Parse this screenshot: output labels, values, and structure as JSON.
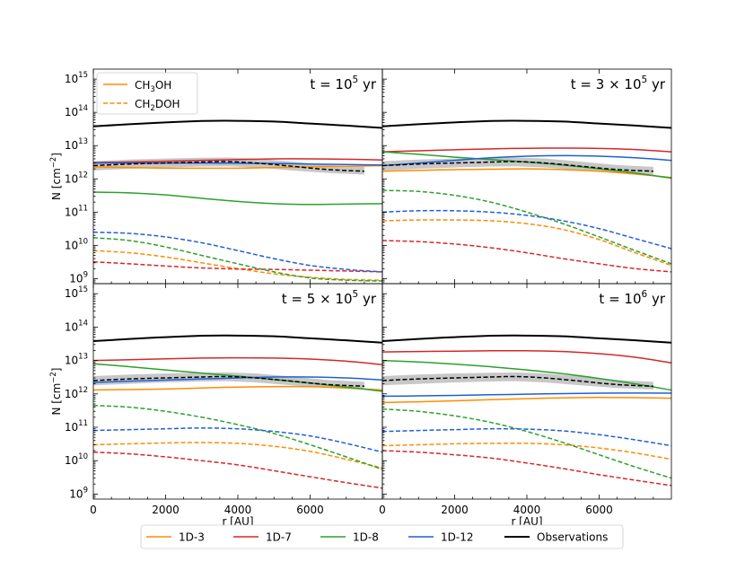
{
  "chart_data": {
    "type": "line",
    "shared": {
      "xlabel": "r [AU]",
      "ylabel": "N [cm",
      "ylabel_sup": "−2",
      "ylabel_end": "]",
      "xlim": [
        0,
        8000
      ],
      "ylim_log10": [
        8.85,
        15.3
      ],
      "yscale": "log",
      "x_ticks": [
        0,
        2000,
        4000,
        6000
      ],
      "x_tick_labels": [
        "0",
        "2000",
        "4000",
        "6000"
      ],
      "y_tick_exponents": [
        9,
        10,
        11,
        12,
        13,
        14,
        15
      ],
      "y_tick_base": "10",
      "x": [
        0,
        1000,
        2000,
        3000,
        4000,
        5000,
        6000,
        7000,
        8000
      ]
    },
    "style_legend": [
      {
        "label_main": "CH",
        "label_sub": "3",
        "label_end": "OH",
        "dash": "solid"
      },
      {
        "label_main": "CH",
        "label_sub": "2",
        "label_end": "DOH",
        "dash": "dashed"
      }
    ],
    "legend": [
      {
        "name": "1D-3",
        "color": "#ff8c00"
      },
      {
        "name": "1D-7",
        "color": "#d62728"
      },
      {
        "name": "1D-8",
        "color": "#2ca02c"
      },
      {
        "name": "1D-12",
        "color": "#1f5fd6"
      },
      {
        "name": "Observations",
        "color": "#000000"
      }
    ],
    "panels": [
      {
        "title_pre": "t = 10",
        "title_sup": "5",
        "title_post": " yr",
        "series": [
          {
            "model": "1D-3",
            "species": "CH3OH",
            "values": [
              2300000000000.0,
              2200000000000.0,
              2100000000000.0,
              2100000000000.0,
              2100000000000.0,
              2200000000000.0,
              2300000000000.0,
              2400000000000.0,
              2500000000000.0
            ]
          },
          {
            "model": "1D-7",
            "species": "CH3OH",
            "values": [
              3100000000000.0,
              3200000000000.0,
              3400000000000.0,
              3600000000000.0,
              3800000000000.0,
              4000000000000.0,
              4000000000000.0,
              3900000000000.0,
              3700000000000.0
            ]
          },
          {
            "model": "1D-8",
            "species": "CH3OH",
            "values": [
              400000000000.0,
              380000000000.0,
              330000000000.0,
              260000000000.0,
              210000000000.0,
              180000000000.0,
              170000000000.0,
              175000000000.0,
              180000000000.0
            ]
          },
          {
            "model": "1D-12",
            "species": "CH3OH",
            "values": [
              3000000000000.0,
              3000000000000.0,
              3000000000000.0,
              3000000000000.0,
              2950000000000.0,
              2900000000000.0,
              2800000000000.0,
              2700000000000.0,
              2600000000000.0
            ]
          },
          {
            "model": "1D-3",
            "species": "CH2DOH",
            "values": [
              7000000000.0,
              6000000000.0,
              4500000000.0,
              3000000000.0,
              2000000000.0,
              1400000000.0,
              1100000000.0,
              950000000.0,
              900000000.0
            ]
          },
          {
            "model": "1D-7",
            "species": "CH2DOH",
            "values": [
              3200000000.0,
              2800000000.0,
              2400000000.0,
              2100000000.0,
              1950000000.0,
              1900000000.0,
              1800000000.0,
              1700000000.0,
              1600000000.0
            ]
          },
          {
            "model": "1D-8",
            "species": "CH2DOH",
            "values": [
              17000000000.0,
              14000000000.0,
              9000000000.0,
              5000000000.0,
              2800000000.0,
              1600000000.0,
              1050000000.0,
              900000000.0,
              850000000.0
            ]
          },
          {
            "model": "1D-12",
            "species": "CH2DOH",
            "values": [
              25000000000.0,
              23000000000.0,
              18000000000.0,
              12000000000.0,
              7000000000.0,
              4000000000.0,
              2500000000.0,
              1900000000.0,
              1600000000.0
            ]
          }
        ]
      },
      {
        "title_pre": "t = 3 × 10",
        "title_sup": "5",
        "title_post": " yr",
        "series": [
          {
            "model": "1D-3",
            "species": "CH3OH",
            "values": [
              1700000000000.0,
              1800000000000.0,
              1900000000000.0,
              1950000000000.0,
              2000000000000.0,
              1900000000000.0,
              1700000000000.0,
              1400000000000.0,
              1100000000000.0
            ]
          },
          {
            "model": "1D-7",
            "species": "CH3OH",
            "values": [
              6500000000000.0,
              7000000000000.0,
              7500000000000.0,
              8000000000000.0,
              8300000000000.0,
              8400000000000.0,
              8200000000000.0,
              7600000000000.0,
              6500000000000.0
            ]
          },
          {
            "model": "1D-8",
            "species": "CH3OH",
            "values": [
              6500000000000.0,
              5500000000000.0,
              4500000000000.0,
              3800000000000.0,
              3200000000000.0,
              2600000000000.0,
              2000000000000.0,
              1500000000000.0,
              1050000000000.0
            ]
          },
          {
            "model": "1D-12",
            "species": "CH3OH",
            "values": [
              2500000000000.0,
              3000000000000.0,
              3600000000000.0,
              4300000000000.0,
              4800000000000.0,
              5000000000000.0,
              4800000000000.0,
              4300000000000.0,
              3600000000000.0
            ]
          },
          {
            "model": "1D-3",
            "species": "CH2DOH",
            "values": [
              55000000000.0,
              58000000000.0,
              58000000000.0,
              55000000000.0,
              45000000000.0,
              30000000000.0,
              15000000000.0,
              6000000000.0,
              2500000000.0
            ]
          },
          {
            "model": "1D-7",
            "species": "CH2DOH",
            "values": [
              14000000000.0,
              13000000000.0,
              11000000000.0,
              8500000000.0,
              6000000000.0,
              4000000000.0,
              2800000000.0,
              2000000000.0,
              1600000000.0
            ]
          },
          {
            "model": "1D-8",
            "species": "CH2DOH",
            "values": [
              450000000000.0,
              420000000000.0,
              320000000000.0,
              200000000000.0,
              100000000000.0,
              45000000000.0,
              18000000000.0,
              7000000000.0,
              2800000000.0
            ]
          },
          {
            "model": "1D-12",
            "species": "CH2DOH",
            "values": [
              100000000000.0,
              110000000000.0,
              110000000000.0,
              100000000000.0,
              80000000000.0,
              55000000000.0,
              32000000000.0,
              16000000000.0,
              8000000000.0
            ]
          }
        ]
      },
      {
        "title_pre": "t = 5 × 10",
        "title_sup": "5",
        "title_post": " yr",
        "series": [
          {
            "model": "1D-3",
            "species": "CH3OH",
            "values": [
              1300000000000.0,
              1350000000000.0,
              1400000000000.0,
              1500000000000.0,
              1600000000000.0,
              1650000000000.0,
              1650000000000.0,
              1500000000000.0,
              1300000000000.0
            ]
          },
          {
            "model": "1D-7",
            "species": "CH3OH",
            "values": [
              10000000000000.0,
              10500000000000.0,
              11200000000000.0,
              11800000000000.0,
              12000000000000.0,
              11800000000000.0,
              11000000000000.0,
              9500000000000.0,
              7500000000000.0
            ]
          },
          {
            "model": "1D-8",
            "species": "CH3OH",
            "values": [
              8000000000000.0,
              6500000000000.0,
              5200000000000.0,
              4200000000000.0,
              3400000000000.0,
              2700000000000.0,
              2100000000000.0,
              1600000000000.0,
              1200000000000.0
            ]
          },
          {
            "model": "1D-12",
            "species": "CH3OH",
            "values": [
              2200000000000.0,
              2400000000000.0,
              2600000000000.0,
              2800000000000.0,
              3000000000000.0,
              3200000000000.0,
              3200000000000.0,
              3000000000000.0,
              2600000000000.0
            ]
          },
          {
            "model": "1D-3",
            "species": "CH2DOH",
            "values": [
              30000000000.0,
              32000000000.0,
              34000000000.0,
              35000000000.0,
              33000000000.0,
              27000000000.0,
              19000000000.0,
              11000000000.0,
              6000000000.0
            ]
          },
          {
            "model": "1D-7",
            "species": "CH2DOH",
            "values": [
              18000000000.0,
              16000000000.0,
              13000000000.0,
              10000000000.0,
              7500000000.0,
              5000000000.0,
              3300000000.0,
              2200000000.0,
              1500000000.0
            ]
          },
          {
            "model": "1D-8",
            "species": "CH2DOH",
            "values": [
              450000000000.0,
              400000000000.0,
              300000000000.0,
              200000000000.0,
              120000000000.0,
              65000000000.0,
              30000000000.0,
              13000000000.0,
              5500000000.0
            ]
          },
          {
            "model": "1D-12",
            "species": "CH2DOH",
            "values": [
              80000000000.0,
              85000000000.0,
              90000000000.0,
              95000000000.0,
              90000000000.0,
              75000000000.0,
              55000000000.0,
              33000000000.0,
              18000000000.0
            ]
          }
        ]
      },
      {
        "title_pre": "t = 10",
        "title_sup": "6",
        "title_post": " yr",
        "series": [
          {
            "model": "1D-3",
            "species": "CH3OH",
            "values": [
              550000000000.0,
              580000000000.0,
              620000000000.0,
              670000000000.0,
              720000000000.0,
              760000000000.0,
              780000000000.0,
              770000000000.0,
              740000000000.0
            ]
          },
          {
            "model": "1D-7",
            "species": "CH3OH",
            "values": [
              18000000000000.0,
              18500000000000.0,
              19000000000000.0,
              19500000000000.0,
              19500000000000.0,
              18500000000000.0,
              16000000000000.0,
              12500000000000.0,
              8500000000000.0
            ]
          },
          {
            "model": "1D-8",
            "species": "CH3OH",
            "values": [
              10000000000000.0,
              9000000000000.0,
              7800000000000.0,
              6500000000000.0,
              5200000000000.0,
              4000000000000.0,
              2900000000000.0,
              2000000000000.0,
              1300000000000.0
            ]
          },
          {
            "model": "1D-12",
            "species": "CH3OH",
            "values": [
              850000000000.0,
              870000000000.0,
              900000000000.0,
              940000000000.0,
              980000000000.0,
              1020000000000.0,
              1050000000000.0,
              1060000000000.0,
              1050000000000.0
            ]
          },
          {
            "model": "1D-3",
            "species": "CH2DOH",
            "values": [
              28000000000.0,
              30000000000.0,
              32000000000.0,
              33000000000.0,
              33000000000.0,
              30000000000.0,
              24000000000.0,
              17000000000.0,
              11000000000.0
            ]
          },
          {
            "model": "1D-7",
            "species": "CH2DOH",
            "values": [
              20000000000.0,
              18000000000.0,
              15000000000.0,
              12000000000.0,
              8500000000.0,
              5800000000.0,
              3800000000.0,
              2600000000.0,
              1800000000.0
            ]
          },
          {
            "model": "1D-8",
            "species": "CH2DOH",
            "values": [
              350000000000.0,
              300000000000.0,
              220000000000.0,
              140000000000.0,
              75000000000.0,
              35000000000.0,
              15000000000.0,
              6500000000.0,
              3000000000.0
            ]
          },
          {
            "model": "1D-12",
            "species": "CH2DOH",
            "values": [
              75000000000.0,
              80000000000.0,
              85000000000.0,
              90000000000.0,
              88000000000.0,
              78000000000.0,
              60000000000.0,
              42000000000.0,
              28000000000.0
            ]
          }
        ]
      }
    ],
    "observations": {
      "x": [
        0,
        1000,
        2000,
        3000,
        3700,
        5000,
        6000,
        7000,
        8000
      ],
      "values": [
        38000000000000.0,
        44000000000000.0,
        50000000000000.0,
        55000000000000.0,
        56000000000000.0,
        53000000000000.0,
        46000000000000.0,
        40000000000000.0,
        34000000000000.0
      ]
    },
    "obs_ch2doh": {
      "x": [
        0,
        1000,
        2000,
        3000,
        3700,
        4500,
        5500,
        6500,
        7500
      ],
      "values": [
        2500000000000.0,
        2800000000000.0,
        3000000000000.0,
        3200000000000.0,
        3300000000000.0,
        3000000000000.0,
        2400000000000.0,
        1900000000000.0,
        1700000000000.0
      ],
      "band_lower": [
        1800000000000.0,
        2000000000000.0,
        2200000000000.0,
        2350000000000.0,
        2400000000000.0,
        2200000000000.0,
        1800000000000.0,
        1500000000000.0,
        1350000000000.0
      ],
      "band_upper": [
        3400000000000.0,
        3800000000000.0,
        4100000000000.0,
        4300000000000.0,
        4400000000000.0,
        4100000000000.0,
        3300000000000.0,
        2600000000000.0,
        2300000000000.0
      ],
      "band_color": "#bdbdbd"
    }
  }
}
